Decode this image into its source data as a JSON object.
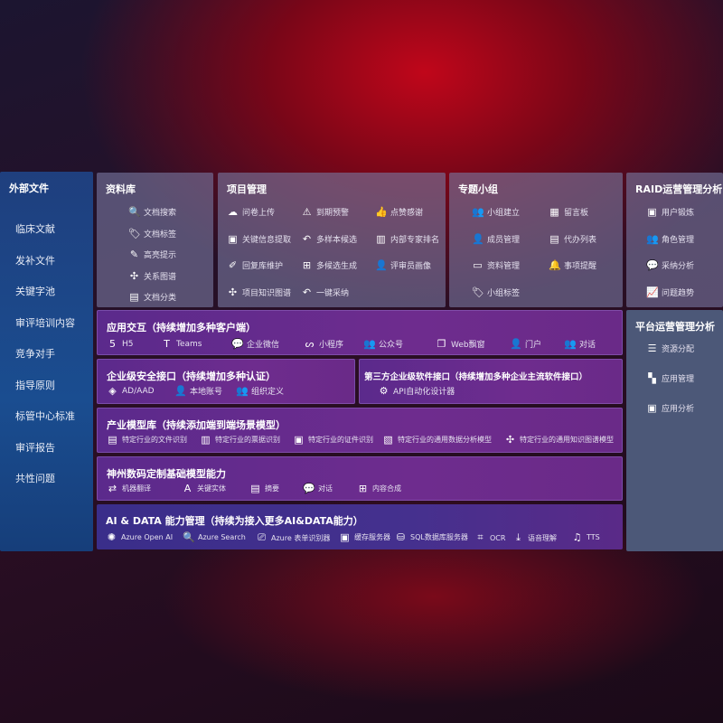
{
  "sidebar": {
    "title": "外部文件",
    "items": [
      "临床文献",
      "发补文件",
      "关键字池",
      "审评培训内容",
      "竞争对手",
      "指导原则",
      "标管中心标准",
      "审评报告",
      "共性问题"
    ]
  },
  "library": {
    "title": "资料库",
    "items": [
      {
        "icon": "doc-search-icon",
        "g": "🔍",
        "label": "文档搜索"
      },
      {
        "icon": "tag-icon",
        "g": "🏷",
        "label": "文档标签"
      },
      {
        "icon": "pen-icon",
        "g": "✎",
        "label": "高亮提示"
      },
      {
        "icon": "graph-icon",
        "g": "✣",
        "label": "关系图谱"
      },
      {
        "icon": "doc-classify-icon",
        "g": "▤",
        "label": "文档分类"
      }
    ]
  },
  "project": {
    "title": "项目管理",
    "items": [
      {
        "icon": "cloud-upload-icon",
        "g": "☁",
        "label": "问卷上传"
      },
      {
        "icon": "alarm-icon",
        "g": "⚠",
        "label": "到期预警"
      },
      {
        "icon": "thumbs-up-icon",
        "g": "👍",
        "label": "点赞感谢"
      },
      {
        "icon": "extract-icon",
        "g": "▣",
        "label": "关键信息提取"
      },
      {
        "icon": "reply-icon",
        "g": "↶",
        "label": "多样本候选"
      },
      {
        "icon": "rank-icon",
        "g": "▥",
        "label": "内部专家排名"
      },
      {
        "icon": "edit-icon",
        "g": "✐",
        "label": "回复库维护"
      },
      {
        "icon": "puzzle-icon",
        "g": "⊞",
        "label": "多候选生成"
      },
      {
        "icon": "user-icon",
        "g": "👤",
        "label": "评审员画像"
      },
      {
        "icon": "graph-icon",
        "g": "✣",
        "label": "项目知识图谱"
      },
      {
        "icon": "reply-icon",
        "g": "↶",
        "label": "一键采纳"
      }
    ]
  },
  "group": {
    "title": "专题小组",
    "items": [
      {
        "icon": "group-icon",
        "g": "👥",
        "label": "小组建立"
      },
      {
        "icon": "bbs-icon",
        "g": "▦",
        "label": "留言板"
      },
      {
        "icon": "member-icon",
        "g": "👤",
        "label": "成员管理"
      },
      {
        "icon": "clipboard-icon",
        "g": "▤",
        "label": "代办列表"
      },
      {
        "icon": "folder-icon",
        "g": "▭",
        "label": "资料管理"
      },
      {
        "icon": "bell-icon",
        "g": "🔔",
        "label": "事项提醒"
      },
      {
        "icon": "tag-icon",
        "g": "🏷",
        "label": "小组标签"
      }
    ]
  },
  "raid": {
    "title": "RAID运营管理分析",
    "items": [
      {
        "icon": "id-card-icon",
        "g": "▣",
        "label": "用户锻炼"
      },
      {
        "icon": "users-icon",
        "g": "👥",
        "label": "角色管理"
      },
      {
        "icon": "qa-icon",
        "g": "💬",
        "label": "采纳分析"
      },
      {
        "icon": "trend-icon",
        "g": "📈",
        "label": "问题趋势"
      }
    ]
  },
  "platform": {
    "title": "平台运营管理分析",
    "items": [
      {
        "icon": "checklist-icon",
        "g": "☰",
        "label": "资源分配"
      },
      {
        "icon": "apps-icon",
        "g": "▚",
        "label": "应用管理"
      },
      {
        "icon": "analytics-icon",
        "g": "▣",
        "label": "应用分析"
      }
    ]
  },
  "app": {
    "title": "应用交互（持续增加多种客户端）",
    "items": [
      {
        "icon": "html5-icon",
        "g": "5",
        "label": "H5"
      },
      {
        "icon": "teams-icon",
        "g": "T",
        "label": "Teams"
      },
      {
        "icon": "wecom-icon",
        "g": "💬",
        "label": "企业微信"
      },
      {
        "icon": "miniprogram-icon",
        "g": "ᔕ",
        "label": "小程序"
      },
      {
        "icon": "official-account-icon",
        "g": "👥",
        "label": "公众号"
      },
      {
        "icon": "window-icon",
        "g": "❐",
        "label": "Web飘窗"
      },
      {
        "icon": "portal-icon",
        "g": "👤",
        "label": "门户"
      },
      {
        "icon": "chat-users-icon",
        "g": "👥",
        "label": "对话"
      }
    ]
  },
  "security": {
    "title": "企业级安全接口（持续增加多种认证）",
    "items": [
      {
        "icon": "ad-icon",
        "g": "◈",
        "label": "AD/AAD"
      },
      {
        "icon": "local-account-icon",
        "g": "👤",
        "label": "本地账号"
      },
      {
        "icon": "org-icon",
        "g": "👥",
        "label": "组织定义"
      }
    ]
  },
  "thirdparty": {
    "title": "第三方企业级软件接口（持续增加多种企业主流软件接口）",
    "items": [
      {
        "icon": "api-gear-icon",
        "g": "⚙",
        "label": "API自动化设计器"
      }
    ]
  },
  "industry": {
    "title": "产业模型库（持续添加端到端场景模型）",
    "items": [
      {
        "icon": "file-icon",
        "g": "▤",
        "label": "特定行业的文件识别"
      },
      {
        "icon": "receipt-icon",
        "g": "▥",
        "label": "特定行业的票据识别"
      },
      {
        "icon": "id-card-icon",
        "g": "▣",
        "label": "特定行业的证件识别"
      },
      {
        "icon": "chart-icon",
        "g": "▧",
        "label": "特定行业的通用数据分析模型"
      },
      {
        "icon": "graph-icon",
        "g": "✣",
        "label": "特定行业的通用知识图谱模型"
      }
    ]
  },
  "base": {
    "title": "神州数码定制基础模型能力",
    "items": [
      {
        "icon": "translate-icon",
        "g": "⇄",
        "label": "机器翻译"
      },
      {
        "icon": "entity-icon",
        "g": "A",
        "label": "关键实体"
      },
      {
        "icon": "summary-icon",
        "g": "▤",
        "label": "摘要"
      },
      {
        "icon": "chat-icon",
        "g": "💬",
        "label": "对话"
      },
      {
        "icon": "compose-icon",
        "g": "⊞",
        "label": "内容合成"
      }
    ]
  },
  "ai": {
    "title": "AI & DATA 能力管理（持续为接入更多AI&DATA能力）",
    "items": [
      {
        "icon": "openai-icon",
        "g": "✺",
        "label": "Azure Open AI"
      },
      {
        "icon": "search-icon",
        "g": "🔍",
        "label": "Azure Search"
      },
      {
        "icon": "form-icon",
        "g": "⎚",
        "label": "Azure 表单识别器"
      },
      {
        "icon": "cache-icon",
        "g": "▣",
        "label": "缓存服务器"
      },
      {
        "icon": "database-icon",
        "g": "⛁",
        "label": "SQL数据库服务器"
      },
      {
        "icon": "ocr-icon",
        "g": "⌗",
        "label": "OCR"
      },
      {
        "icon": "speech-icon",
        "g": "⤓",
        "label": "语音理解"
      },
      {
        "icon": "tts-icon",
        "g": "♫",
        "label": "TTS"
      }
    ]
  }
}
